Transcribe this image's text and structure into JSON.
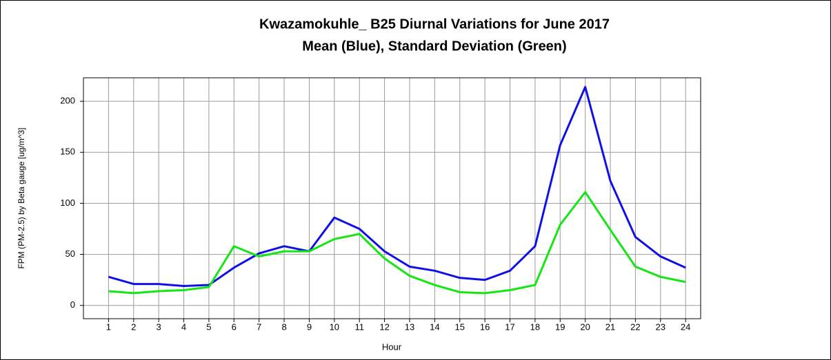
{
  "chart_data": {
    "type": "line",
    "title": "Kwazamokuhle_ B25 Diurnal Variations for June 2017",
    "subtitle": "Mean (Blue), Standard Deviation (Green)",
    "x_label": "Hour",
    "y_label": "FPM (PM-2.5) by Beta gauge  [ug/m^3]",
    "x": [
      1,
      2,
      3,
      4,
      5,
      6,
      7,
      8,
      9,
      10,
      11,
      12,
      13,
      14,
      15,
      16,
      17,
      18,
      19,
      20,
      21,
      22,
      23,
      24
    ],
    "series": [
      {
        "color": "#1010e6",
        "values": [
          28,
          21,
          21,
          19,
          20,
          37,
          51,
          58,
          53,
          86,
          75,
          53,
          38,
          34,
          27,
          25,
          34,
          58,
          157,
          214,
          122,
          67,
          48,
          37
        ]
      },
      {
        "color": "#14e614",
        "values": [
          14,
          12,
          14,
          15,
          18,
          58,
          48,
          53,
          53,
          65,
          70,
          46,
          29,
          20,
          13,
          12,
          15,
          20,
          79,
          111,
          74,
          38,
          28,
          23
        ]
      }
    ],
    "xlim": [
      0,
      24.6
    ],
    "xticks": [
      1,
      2,
      3,
      4,
      5,
      6,
      7,
      8,
      9,
      10,
      11,
      12,
      13,
      14,
      15,
      16,
      17,
      18,
      19,
      20,
      21,
      22,
      23,
      24
    ],
    "ylim": [
      -13,
      223
    ],
    "yticks": [
      0,
      50,
      100,
      150,
      200
    ],
    "grid": true
  }
}
